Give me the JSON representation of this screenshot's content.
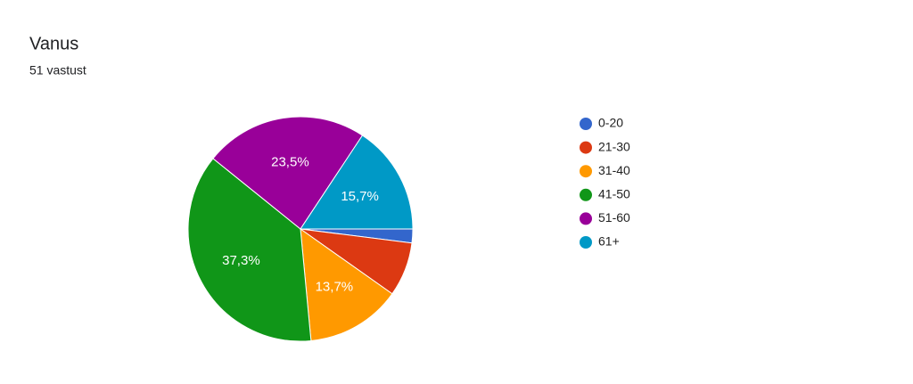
{
  "chart_data": {
    "type": "pie",
    "title": "Vanus",
    "subtitle": "51 vastust",
    "categories": [
      "0-20",
      "21-30",
      "31-40",
      "41-50",
      "51-60",
      "61+"
    ],
    "values": [
      2.0,
      7.8,
      13.7,
      37.3,
      23.5,
      15.7
    ],
    "value_labels": [
      null,
      null,
      "13,7%",
      "37,3%",
      "23,5%",
      "15,7%"
    ],
    "colors": [
      "#3366cc",
      "#dc3912",
      "#ff9900",
      "#109618",
      "#990099",
      "#0099c6"
    ],
    "legend": "right"
  }
}
